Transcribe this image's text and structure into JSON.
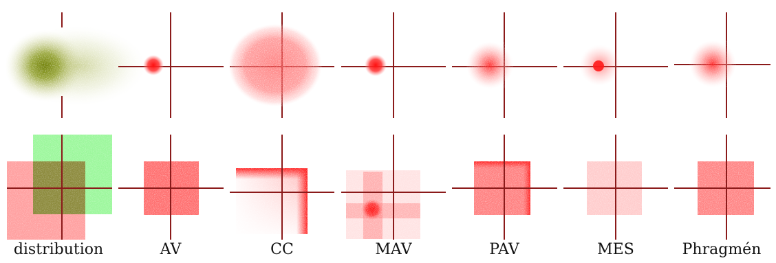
{
  "panels": [
    {
      "label": "distribution"
    },
    {
      "label": "AV"
    },
    {
      "label": "CC"
    },
    {
      "label": "MAV"
    },
    {
      "label": "PAV"
    },
    {
      "label": "MES"
    },
    {
      "label": "Phragmén"
    }
  ],
  "colors": {
    "axis": "#8b1a1a",
    "points": "#ff2020",
    "distribution_top": "#7a8a10",
    "distribution_pink": "#ff9999",
    "distribution_green": "#99ff99",
    "distribution_overlap": "#8a8a3a"
  }
}
